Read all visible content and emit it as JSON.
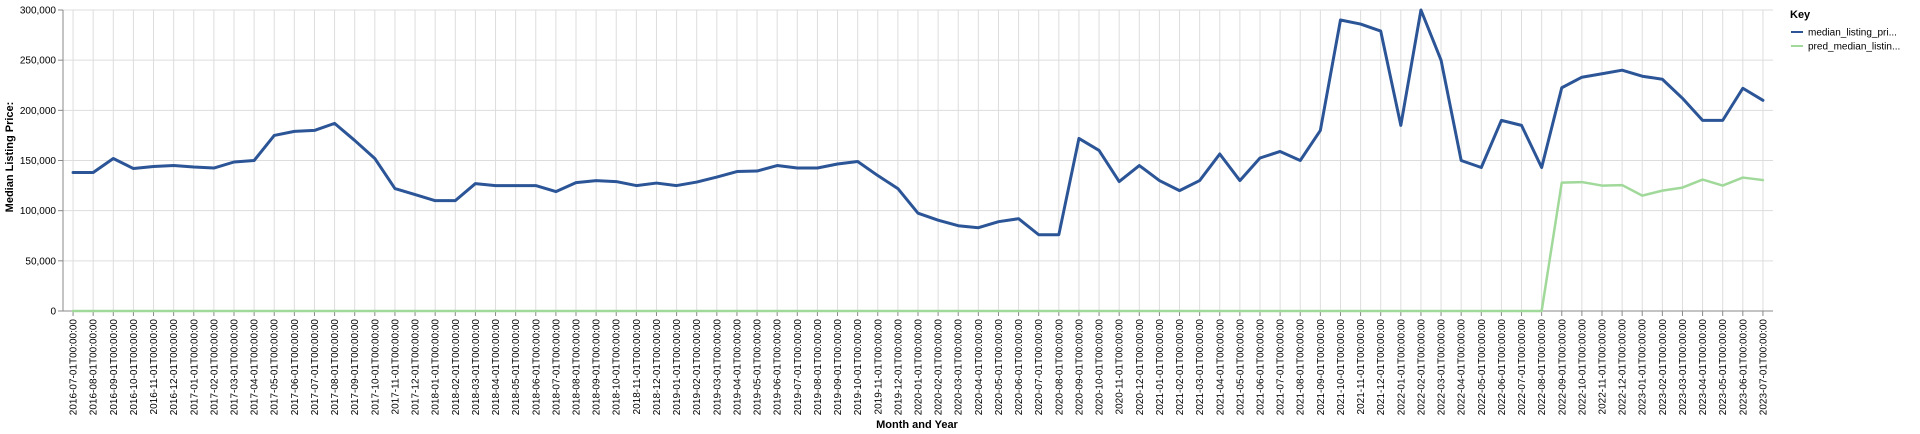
{
  "chart_data": {
    "type": "line",
    "xlabel": "Month and Year",
    "ylabel": "Median Listing Price:",
    "ylim": [
      0,
      300000
    ],
    "yticks": [
      "0",
      "50,000",
      "100,000",
      "150,000",
      "200,000",
      "250,000",
      "300,000"
    ],
    "x": [
      "2016-07-01T00:00:00",
      "2016-08-01T00:00:00",
      "2016-09-01T00:00:00",
      "2016-10-01T00:00:00",
      "2016-11-01T00:00:00",
      "2016-12-01T00:00:00",
      "2017-01-01T00:00:00",
      "2017-02-01T00:00:00",
      "2017-03-01T00:00:00",
      "2017-04-01T00:00:00",
      "2017-05-01T00:00:00",
      "2017-06-01T00:00:00",
      "2017-07-01T00:00:00",
      "2017-08-01T00:00:00",
      "2017-09-01T00:00:00",
      "2017-10-01T00:00:00",
      "2017-11-01T00:00:00",
      "2017-12-01T00:00:00",
      "2018-01-01T00:00:00",
      "2018-02-01T00:00:00",
      "2018-03-01T00:00:00",
      "2018-04-01T00:00:00",
      "2018-05-01T00:00:00",
      "2018-06-01T00:00:00",
      "2018-07-01T00:00:00",
      "2018-08-01T00:00:00",
      "2018-09-01T00:00:00",
      "2018-10-01T00:00:00",
      "2018-11-01T00:00:00",
      "2018-12-01T00:00:00",
      "2019-01-01T00:00:00",
      "2019-02-01T00:00:00",
      "2019-03-01T00:00:00",
      "2019-04-01T00:00:00",
      "2019-05-01T00:00:00",
      "2019-06-01T00:00:00",
      "2019-07-01T00:00:00",
      "2019-08-01T00:00:00",
      "2019-09-01T00:00:00",
      "2019-10-01T00:00:00",
      "2019-11-01T00:00:00",
      "2019-12-01T00:00:00",
      "2020-01-01T00:00:00",
      "2020-02-01T00:00:00",
      "2020-03-01T00:00:00",
      "2020-04-01T00:00:00",
      "2020-05-01T00:00:00",
      "2020-06-01T00:00:00",
      "2020-07-01T00:00:00",
      "2020-08-01T00:00:00",
      "2020-09-01T00:00:00",
      "2020-10-01T00:00:00",
      "2020-11-01T00:00:00",
      "2020-12-01T00:00:00",
      "2021-01-01T00:00:00",
      "2021-02-01T00:00:00",
      "2021-03-01T00:00:00",
      "2021-04-01T00:00:00",
      "2021-05-01T00:00:00",
      "2021-06-01T00:00:00",
      "2021-07-01T00:00:00",
      "2021-08-01T00:00:00",
      "2021-09-01T00:00:00",
      "2021-10-01T00:00:00",
      "2021-11-01T00:00:00",
      "2021-12-01T00:00:00",
      "2022-01-01T00:00:00",
      "2022-02-01T00:00:00",
      "2022-03-01T00:00:00",
      "2022-04-01T00:00:00",
      "2022-05-01T00:00:00",
      "2022-06-01T00:00:00",
      "2022-07-01T00:00:00",
      "2022-08-01T00:00:00",
      "2022-09-01T00:00:00",
      "2022-10-01T00:00:00",
      "2022-11-01T00:00:00",
      "2022-12-01T00:00:00",
      "2023-01-01T00:00:00",
      "2023-02-01T00:00:00",
      "2023-03-01T00:00:00",
      "2023-04-01T00:00:00",
      "2023-05-01T00:00:00",
      "2023-06-01T00:00:00",
      "2023-07-01T00:00:00"
    ],
    "series": [
      {
        "name": "median_listing_pri...",
        "color": "#2b5597",
        "values": [
          138000,
          138000,
          152000,
          142000,
          144000,
          145000,
          143500,
          142500,
          148500,
          150000,
          175000,
          179000,
          180000,
          187000,
          170000,
          152000,
          122000,
          116000,
          110000,
          110000,
          127000,
          125000,
          125000,
          125000,
          119000,
          128000,
          130000,
          129000,
          125000,
          127500,
          125000,
          128500,
          133500,
          139000,
          139500,
          145000,
          142500,
          142500,
          146500,
          149000,
          135000,
          122000,
          97500,
          90500,
          85000,
          83000,
          89000,
          92000,
          76000,
          76000,
          172000,
          160000,
          129000,
          145000,
          130000,
          120000,
          130000,
          156500,
          130000,
          152500,
          159000,
          150000,
          180000,
          290000,
          286000,
          279000,
          185000,
          300000,
          250000,
          150000,
          143000,
          190000,
          185000,
          143000,
          222500,
          233000,
          236500,
          240000,
          234000,
          231000,
          212000,
          190000,
          190000,
          222000,
          210000
        ]
      },
      {
        "name": "pred_median_listin...",
        "color": "#a1d99b",
        "values": [
          0,
          0,
          0,
          0,
          0,
          0,
          0,
          0,
          0,
          0,
          0,
          0,
          0,
          0,
          0,
          0,
          0,
          0,
          0,
          0,
          0,
          0,
          0,
          0,
          0,
          0,
          0,
          0,
          0,
          0,
          0,
          0,
          0,
          0,
          0,
          0,
          0,
          0,
          0,
          0,
          0,
          0,
          0,
          0,
          0,
          0,
          0,
          0,
          0,
          0,
          0,
          0,
          0,
          0,
          0,
          0,
          0,
          0,
          0,
          0,
          0,
          0,
          0,
          0,
          0,
          0,
          0,
          0,
          0,
          0,
          0,
          0,
          0,
          0,
          128000,
          128500,
          125000,
          125500,
          115000,
          120000,
          123000,
          131000,
          125000,
          133000,
          130500
        ]
      }
    ],
    "legend": {
      "title": "Key",
      "position": "top-right"
    },
    "grid": true
  }
}
